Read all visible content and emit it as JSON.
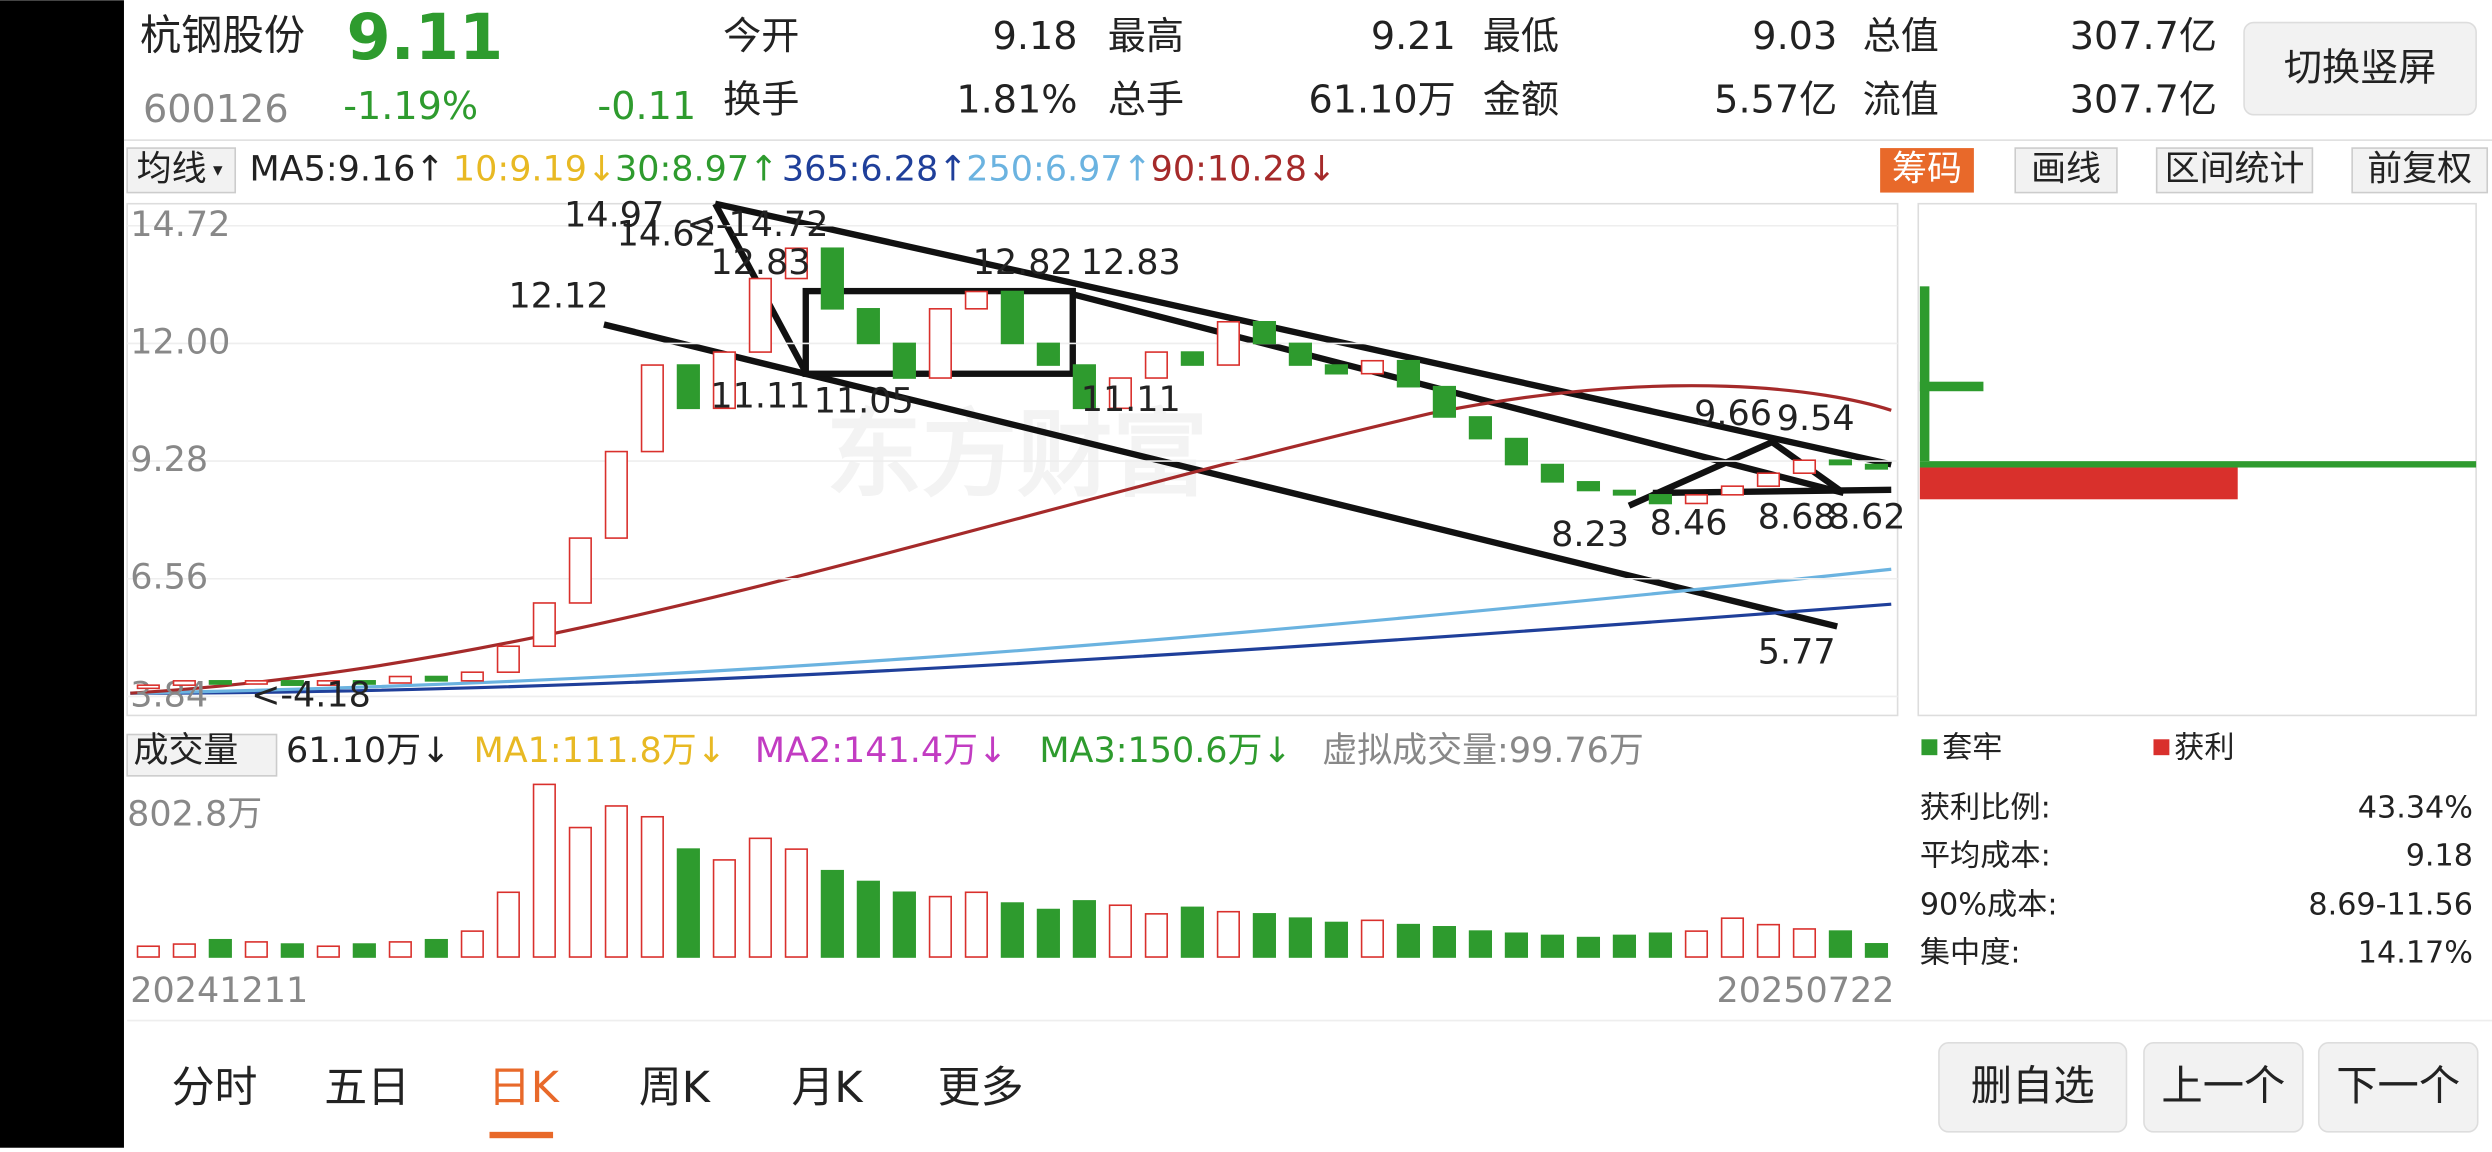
{
  "header": {
    "name": "杭钢股份",
    "price": "9.11",
    "code": "600126",
    "change_pct": "-1.19%",
    "change": "-0.11",
    "stats": [
      [
        {
          "label": "今开",
          "value": "9.18"
        },
        {
          "label": "最高",
          "value": "9.21"
        },
        {
          "label": "最低",
          "value": "9.03"
        },
        {
          "label": "总值",
          "value": "307.7亿"
        }
      ],
      [
        {
          "label": "换手",
          "value": "1.81%"
        },
        {
          "label": "总手",
          "value": "61.10万"
        },
        {
          "label": "金额",
          "value": "5.57亿"
        },
        {
          "label": "流值",
          "value": "307.7亿"
        }
      ]
    ],
    "button": "切换竖屏"
  },
  "ma_bar": {
    "label": "均线",
    "items": [
      {
        "text": "MA5:9.16↑",
        "color": "#222222"
      },
      {
        "text": "10:9.19↓",
        "color": "#e8b923"
      },
      {
        "text": "30:8.97↑",
        "color": "#2e9b2e"
      },
      {
        "text": "365:6.28↑",
        "color": "#1f3f9a"
      },
      {
        "text": "250:6.97↑",
        "color": "#6bb3e0"
      },
      {
        "text": "90:10.28↓",
        "color": "#a52a2a"
      }
    ],
    "tools": [
      "筹码",
      "画线",
      "区间统计",
      "前复权"
    ]
  },
  "chart_data": {
    "type": "candlestick",
    "ylim": [
      3.4,
      15.23
    ],
    "yticks": [
      14.72,
      {
        "value": 12,
        "label": "12.00"
      },
      9.28,
      6.56,
      3.84
    ],
    "close": [
      4.1,
      4.2,
      4.15,
      4.2,
      4.1,
      4.2,
      4.15,
      4.3,
      4.2,
      4.4,
      5.0,
      6.0,
      7.5,
      9.5,
      11.5,
      10.5,
      11.8,
      13.5,
      14.2,
      12.8,
      12.0,
      11.2,
      12.8,
      13.2,
      12.0,
      11.5,
      10.5,
      11.2,
      11.8,
      11.5,
      12.5,
      12.0,
      11.5,
      11.3,
      11.6,
      11.0,
      10.3,
      9.8,
      9.2,
      8.8,
      8.6,
      8.5,
      8.3,
      8.5,
      8.7,
      9.0,
      9.3,
      9.2,
      9.1
    ],
    "annotations": [
      "14.97",
      "14.62",
      "<-14.72",
      "12.83",
      "12.12",
      "12.82",
      "12.83",
      "11.11",
      "11.05",
      "11.11",
      "9.66",
      "9.54",
      "8.23",
      "8.46",
      "8.68",
      "8.62",
      "5.77",
      "<-4.18"
    ]
  },
  "volume": {
    "label": "成交量",
    "items": [
      {
        "text": "61.10万↓",
        "color": "#222222"
      },
      {
        "text": "MA1:111.8万↓",
        "color": "#e8b923"
      },
      {
        "text": "MA2:141.4万↓",
        "color": "#c23cc2"
      },
      {
        "text": "MA3:150.6万↓",
        "color": "#2e9b2e"
      },
      {
        "text": "虚拟成交量:99.76万",
        "color": "#888888"
      }
    ],
    "ylim": [
      0,
      802.8
    ],
    "top_label": "802.8万",
    "values": [
      50,
      60,
      80,
      70,
      60,
      50,
      60,
      70,
      80,
      120,
      300,
      800,
      600,
      700,
      650,
      500,
      450,
      550,
      500,
      400,
      350,
      300,
      280,
      300,
      250,
      220,
      260,
      240,
      200,
      230,
      210,
      200,
      180,
      160,
      170,
      150,
      140,
      120,
      110,
      100,
      90,
      100,
      110,
      120,
      180,
      150,
      130,
      120,
      61.1
    ],
    "start_date": "20241211",
    "end_date": "20250722"
  },
  "chips": {
    "legend": [
      "套牢",
      "获利"
    ],
    "stats": [
      {
        "label": "获利比例:",
        "value": "43.34%"
      },
      {
        "label": "平均成本:",
        "value": "9.18"
      },
      {
        "label": "90%成本:",
        "value": "8.69-11.56"
      },
      {
        "label": "集中度:",
        "value": "14.17%"
      }
    ]
  },
  "tabs": [
    "分时",
    "五日",
    "日K",
    "周K",
    "月K",
    "更多"
  ],
  "buttons": [
    "删自选",
    "上一个",
    "下一个"
  ]
}
